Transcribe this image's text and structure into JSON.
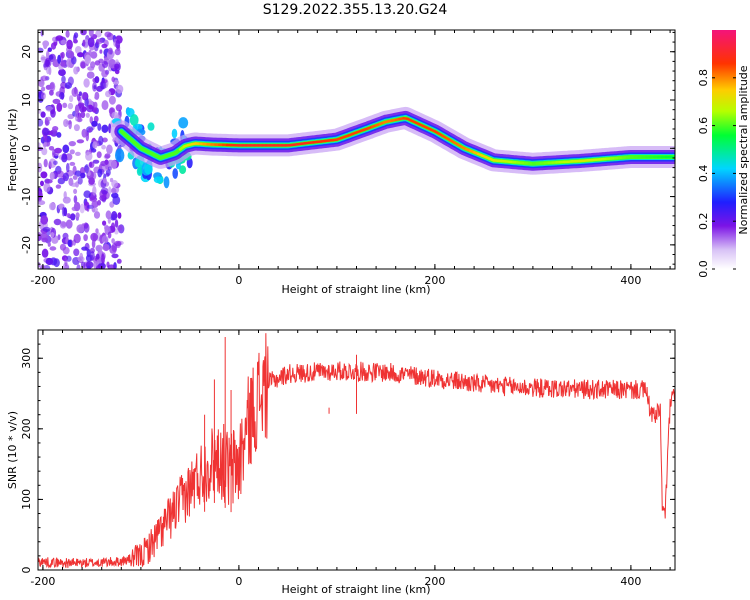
{
  "title": "S129.2022.355.13.20.G24",
  "colors": {
    "snr_line": "#ef3333",
    "ridge_peak": "#e8112d"
  },
  "chart_data": [
    {
      "type": "heatmap",
      "title": "S129.2022.355.13.20.G24",
      "xlabel": "Height of straight line (km)",
      "ylabel": "Frequency (Hz)",
      "xlim": [
        -205,
        445
      ],
      "ylim": [
        -25,
        24.5
      ],
      "xticks": [
        -200,
        0,
        200,
        400
      ],
      "yticks": [
        -20,
        -10,
        0,
        10,
        20
      ],
      "grid": false,
      "colorbar": {
        "label": "Normalized spectral amplitude",
        "range": [
          0,
          1
        ],
        "ticks": [
          "0.0",
          "0.2",
          "0.4",
          "0.6",
          "0.8"
        ],
        "colormap": "white-purple-blue-cyan-green-yellow-orange-red-magenta"
      },
      "ridge": {
        "heights_km": [
          -120,
          -100,
          -80,
          -65,
          -55,
          -45,
          -30,
          -15,
          0,
          50,
          100,
          130,
          150,
          170,
          200,
          230,
          260,
          300,
          350,
          400,
          445
        ],
        "frequency_hz": [
          3.5,
          0,
          -2,
          -1,
          0.5,
          1,
          0.8,
          0.7,
          0.6,
          0.6,
          1.8,
          4,
          5.5,
          6.3,
          3.5,
          0,
          -2.5,
          -3.2,
          -2.6,
          -1.8,
          -1.8
        ],
        "amplitude": [
          0.55,
          0.5,
          0.55,
          0.6,
          0.7,
          0.75,
          0.8,
          0.85,
          0.9,
          0.9,
          0.85,
          0.85,
          0.8,
          0.85,
          0.85,
          0.8,
          0.7,
          0.6,
          0.7,
          0.6,
          0.55
        ]
      },
      "noise_region_km": [
        -205,
        -120
      ]
    },
    {
      "type": "line",
      "xlabel": "Height of straight line (km)",
      "ylabel": "SNR (10 * v/v)",
      "xlim": [
        -205,
        445
      ],
      "ylim": [
        0,
        340
      ],
      "xticks": [
        -200,
        0,
        200,
        400
      ],
      "yticks": [
        0,
        100,
        200,
        300
      ],
      "grid": false,
      "series": [
        {
          "x": [
            -205,
            -180,
            -150,
            -120,
            -100,
            -90,
            -80,
            -70,
            -60,
            -50,
            -40,
            -30,
            -20,
            -10,
            0,
            10,
            20,
            30,
            50,
            100,
            150,
            200,
            250,
            300,
            350,
            400,
            415,
            420,
            425,
            430,
            432,
            435,
            440,
            445
          ],
          "values": [
            12,
            10,
            10,
            12,
            20,
            35,
            55,
            75,
            95,
            115,
            135,
            150,
            160,
            140,
            150,
            210,
            245,
            265,
            278,
            282,
            280,
            272,
            262,
            258,
            256,
            255,
            255,
            225,
            215,
            230,
            85,
            80,
            235,
            248
          ]
        }
      ],
      "spikes": [
        {
          "x": -35,
          "value": 220
        },
        {
          "x": -25,
          "value": 270
        },
        {
          "x": -14,
          "value": 330
        },
        {
          "x": -8,
          "value": 255
        },
        {
          "x": 92,
          "value": 230
        },
        {
          "x": 120,
          "value": 305
        }
      ]
    }
  ]
}
